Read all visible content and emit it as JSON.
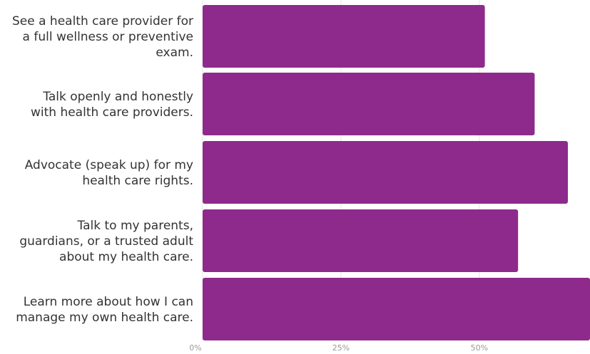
{
  "chart_data": {
    "type": "bar",
    "orientation": "horizontal",
    "categories": [
      [
        "See a health care provider for",
        "a full wellness or preventive",
        "exam."
      ],
      [
        "Talk openly and honestly",
        "with health care providers."
      ],
      [
        "Advocate (speak up) for my",
        "health care rights."
      ],
      [
        "Talk to my parents,",
        "guardians, or a trusted adult",
        "about my health care."
      ],
      [
        "Learn more about how I can",
        "manage my own health care."
      ]
    ],
    "values": [
      51,
      60,
      66,
      57,
      70
    ],
    "xlim": [
      0,
      70
    ],
    "xticks": [
      0,
      25,
      50
    ],
    "xtick_labels": [
      "0%",
      "25%",
      "50%"
    ],
    "bar_color": "#8e2a8b",
    "grid": true,
    "title": "",
    "xlabel": "",
    "ylabel": ""
  }
}
